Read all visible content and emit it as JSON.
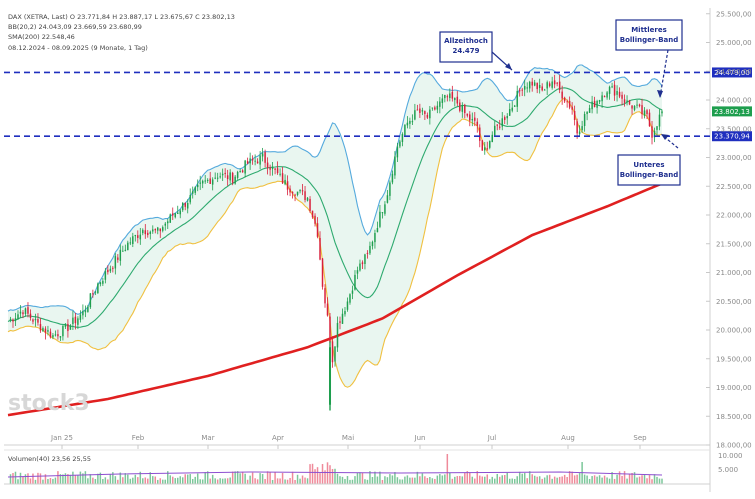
{
  "legend": {
    "line1": "DAX (XETRA, Last) O 23.771,84 H 23.887,17 L 23.675,67 C 23.802,13",
    "line2": "BB(20,2) 24.043,09 23.669,59 23.680,99",
    "line3": "SMA(200) 22.548,46",
    "period": "08.12.2024 - 08.09.2025 (9 Monate, 1 Tag)"
  },
  "volume_legend": "Volumen(40) 23,56 25,55",
  "watermark": "stock3",
  "annotations": {
    "allzeithoch": "Allzeithoch 24.479",
    "mittleres": "Mittleres Bollinger-Band",
    "unteres": "Unteres Bollinger-Band"
  },
  "chart_data": {
    "type": "candlestick",
    "x_labels": [
      "Jan 25",
      "Feb",
      "Mar",
      "Apr",
      "Mai",
      "Jun",
      "Jul",
      "Aug",
      "Sep"
    ],
    "y_ticks": [
      "25.500,00",
      "25.000,00",
      "24.500,00",
      "24.000,00",
      "23.500,00",
      "23.000,00",
      "22.500,00",
      "22.000,00",
      "21.500,00",
      "21.000,00",
      "20.500,00",
      "20.000,00",
      "19.500,00",
      "19.000,00",
      "18.500,00",
      "18.000,00"
    ],
    "ylim": [
      18000,
      25600
    ],
    "horizontal_lines": [
      {
        "value": 24479,
        "label": "24.479,00"
      },
      {
        "value": 23370,
        "label": "23.370,94"
      }
    ],
    "last_price": {
      "value": 23802,
      "label": "23.802,13"
    },
    "series": [
      {
        "name": "DAX",
        "type": "candlestick"
      },
      {
        "name": "BB upper",
        "color": "#55aadd"
      },
      {
        "name": "BB middle",
        "color": "#2eaa6f"
      },
      {
        "name": "BB lower",
        "color": "#f0c040"
      },
      {
        "name": "SMA(200)",
        "color": "#e02020"
      }
    ],
    "close_path": [
      [
        0,
        20150
      ],
      [
        6,
        20350
      ],
      [
        12,
        20100
      ],
      [
        18,
        19900
      ],
      [
        24,
        20050
      ],
      [
        30,
        20300
      ],
      [
        36,
        20800
      ],
      [
        42,
        21150
      ],
      [
        48,
        21500
      ],
      [
        54,
        21750
      ],
      [
        60,
        21700
      ],
      [
        66,
        22000
      ],
      [
        72,
        22250
      ],
      [
        78,
        22550
      ],
      [
        84,
        22700
      ],
      [
        90,
        22650
      ],
      [
        96,
        22900
      ],
      [
        102,
        23000
      ],
      [
        108,
        22700
      ],
      [
        112,
        22500
      ],
      [
        116,
        22400
      ],
      [
        120,
        22300
      ],
      [
        124,
        21700
      ],
      [
        126,
        20800
      ],
      [
        128,
        20200
      ],
      [
        130,
        19500
      ],
      [
        132,
        20100
      ],
      [
        136,
        20500
      ],
      [
        140,
        21050
      ],
      [
        144,
        21300
      ],
      [
        148,
        21850
      ],
      [
        152,
        22400
      ],
      [
        156,
        23200
      ],
      [
        160,
        23600
      ],
      [
        164,
        23800
      ],
      [
        168,
        23700
      ],
      [
        172,
        23900
      ],
      [
        176,
        24050
      ],
      [
        180,
        23950
      ],
      [
        184,
        23700
      ],
      [
        188,
        23550
      ],
      [
        190,
        23050
      ],
      [
        194,
        23400
      ],
      [
        198,
        23650
      ],
      [
        202,
        23900
      ],
      [
        206,
        24250
      ],
      [
        210,
        24300
      ],
      [
        214,
        24150
      ],
      [
        218,
        24350
      ],
      [
        222,
        24100
      ],
      [
        226,
        23850
      ],
      [
        228,
        23450
      ],
      [
        232,
        23800
      ],
      [
        236,
        24000
      ],
      [
        240,
        24200
      ],
      [
        244,
        24150
      ],
      [
        248,
        23950
      ],
      [
        252,
        23850
      ],
      [
        256,
        23700
      ],
      [
        258,
        23420
      ],
      [
        262,
        23800
      ]
    ],
    "sma200_path": [
      [
        0,
        18520
      ],
      [
        40,
        18800
      ],
      [
        80,
        19200
      ],
      [
        120,
        19700
      ],
      [
        150,
        20200
      ],
      [
        180,
        20950
      ],
      [
        210,
        21650
      ],
      [
        240,
        22150
      ],
      [
        262,
        22548
      ]
    ],
    "volume": {
      "ticks": [
        "10.000",
        "5.000"
      ]
    }
  }
}
